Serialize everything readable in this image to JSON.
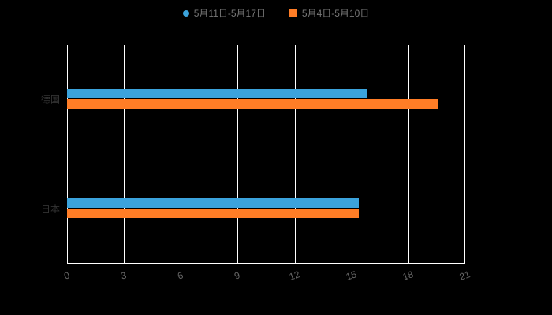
{
  "chart_data": {
    "type": "bar",
    "orientation": "horizontal",
    "title": "",
    "xlabel": "",
    "ylabel": "",
    "categories": [
      "德国",
      "日本"
    ],
    "series": [
      {
        "name": "5月11日-5月17日",
        "marker": "circle",
        "color": "#3BA3DC",
        "values": [
          15.8,
          15.4
        ]
      },
      {
        "name": "5月4日-5月10日",
        "marker": "square",
        "color": "#FF7D26",
        "values": [
          19.6,
          15.4
        ]
      }
    ],
    "xlim": [
      0,
      21
    ],
    "xticks": [
      0,
      3,
      6,
      9,
      12,
      15,
      18,
      21
    ],
    "grid": true,
    "legend_position": "top",
    "colors": {
      "background": "#000000",
      "grid": "#ffffff",
      "axis_line": "#ffffff",
      "tick_label": "#666666",
      "category_label": "#333333",
      "legend_text": "#777777"
    }
  }
}
